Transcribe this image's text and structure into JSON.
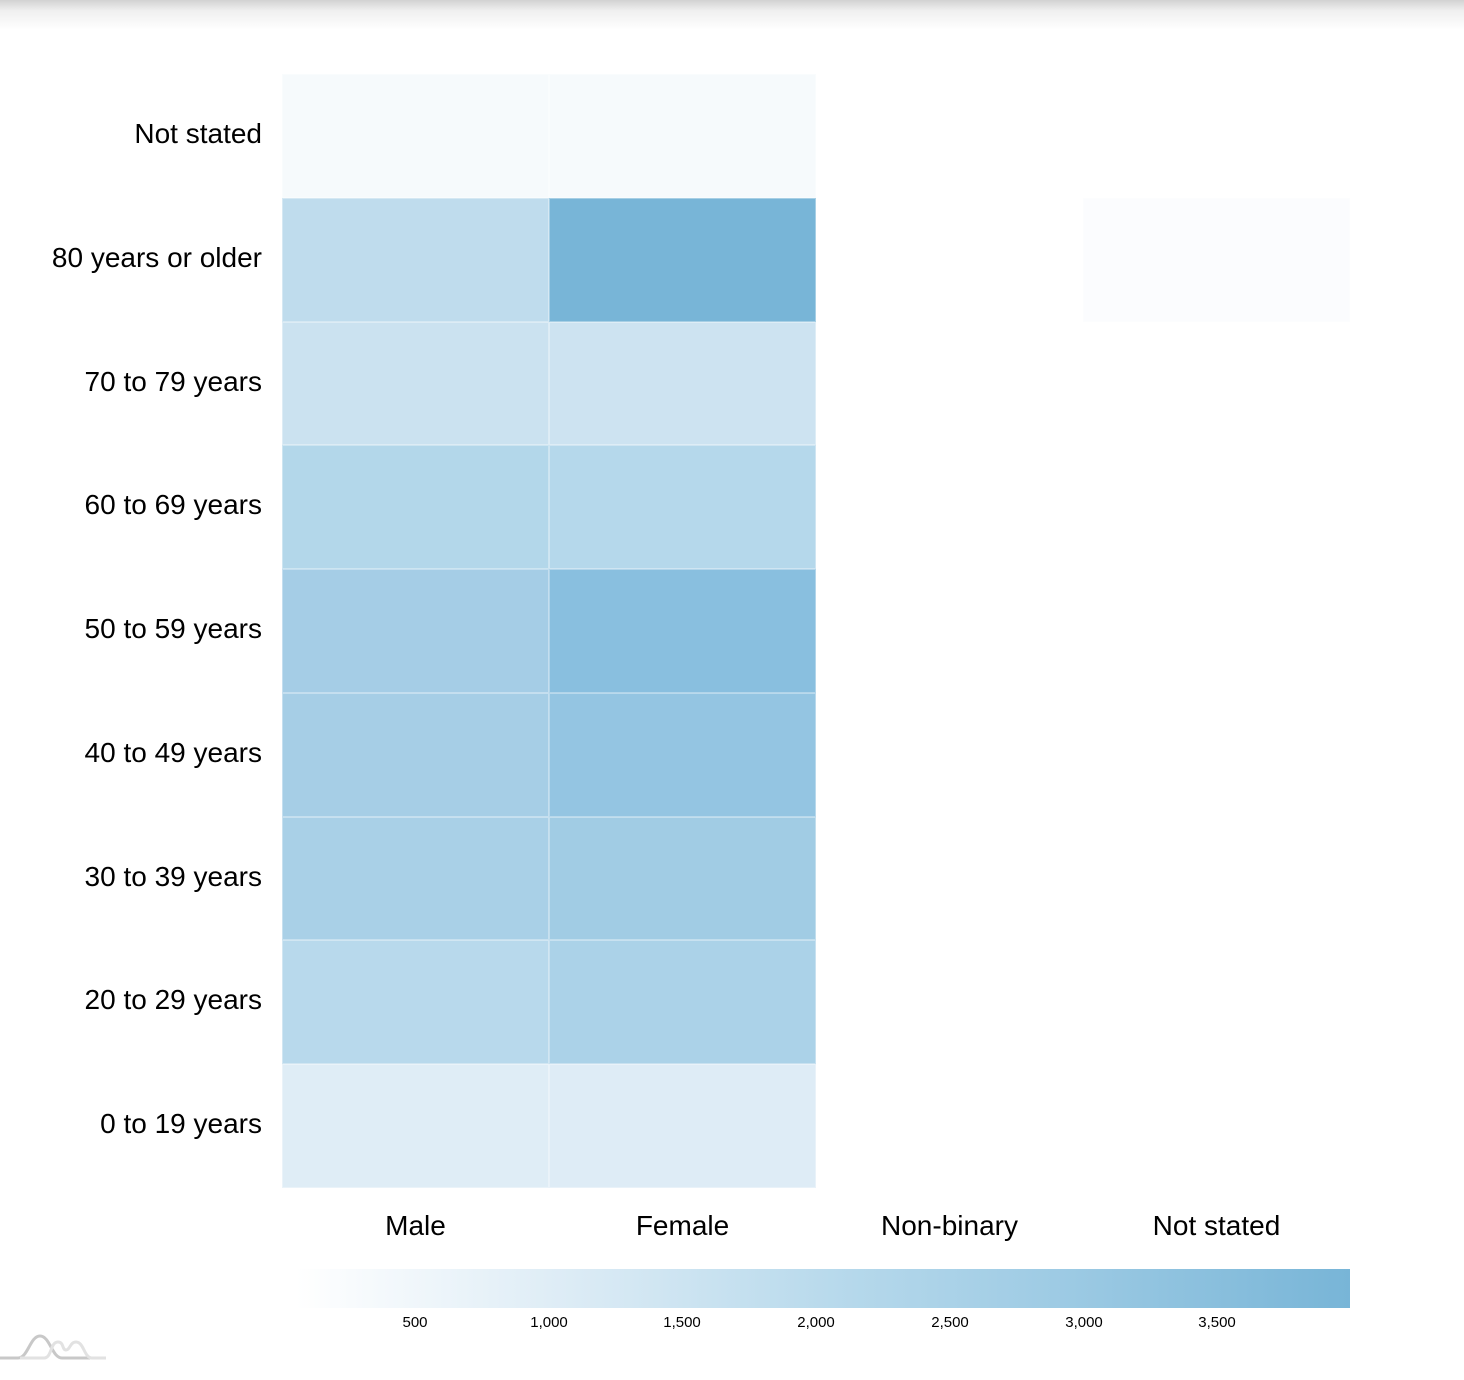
{
  "chart_data": {
    "type": "heatmap",
    "title": "",
    "xlabel": "",
    "ylabel": "",
    "x_categories": [
      "Male",
      "Female",
      "Non-binary",
      "Not stated"
    ],
    "y_categories": [
      "Not stated",
      "80 years or older",
      "70 to 79 years",
      "60 to 69 years",
      "50 to 59 years",
      "40 to 49 years",
      "30 to 39 years",
      "20 to 29 years",
      "0 to 19 years"
    ],
    "cells": [
      {
        "y": "Not stated",
        "x": "Male",
        "value": 100,
        "color": "#f6fafc"
      },
      {
        "y": "Not stated",
        "x": "Female",
        "value": 100,
        "color": "#f6fafc"
      },
      {
        "y": "80 years or older",
        "x": "Male",
        "value": 1900,
        "color": "#bfdced"
      },
      {
        "y": "80 years or older",
        "x": "Female",
        "value": 4000,
        "color": "#78b5d7"
      },
      {
        "y": "80 years or older",
        "x": "Not stated",
        "value": 20,
        "color": "#fbfcfe"
      },
      {
        "y": "70 to 79 years",
        "x": "Male",
        "value": 1550,
        "color": "#cbe2f0"
      },
      {
        "y": "70 to 79 years",
        "x": "Female",
        "value": 1500,
        "color": "#cde3f1"
      },
      {
        "y": "60 to 69 years",
        "x": "Male",
        "value": 2250,
        "color": "#b3d7ea"
      },
      {
        "y": "60 to 69 years",
        "x": "Female",
        "value": 2200,
        "color": "#b5d8eb"
      },
      {
        "y": "50 to 59 years",
        "x": "Male",
        "value": 2700,
        "color": "#a5cde6"
      },
      {
        "y": "50 to 59 years",
        "x": "Female",
        "value": 3500,
        "color": "#89bfdf"
      },
      {
        "y": "40 to 49 years",
        "x": "Male",
        "value": 2700,
        "color": "#a6cee6"
      },
      {
        "y": "40 to 49 years",
        "x": "Female",
        "value": 3200,
        "color": "#94c5e2"
      },
      {
        "y": "30 to 39 years",
        "x": "Male",
        "value": 2600,
        "color": "#a9d0e7"
      },
      {
        "y": "30 to 39 years",
        "x": "Female",
        "value": 2800,
        "color": "#a1cce4"
      },
      {
        "y": "20 to 29 years",
        "x": "Male",
        "value": 2100,
        "color": "#b8d9ec"
      },
      {
        "y": "20 to 29 years",
        "x": "Female",
        "value": 2500,
        "color": "#abd2e8"
      },
      {
        "y": "0 to 19 years",
        "x": "Male",
        "value": 1000,
        "color": "#dfedf6"
      },
      {
        "y": "0 to 19 years",
        "x": "Female",
        "value": 1000,
        "color": "#deecf6"
      }
    ],
    "color_scale": {
      "min_color": "#ffffff",
      "max_color": "#78b5d7",
      "range": [
        55,
        4000
      ],
      "ticks": [
        "500",
        "1,000",
        "1,500",
        "2,000",
        "2,500",
        "3,000",
        "3,500"
      ]
    },
    "legend_position": "bottom",
    "grid": false
  },
  "branding": {
    "logo": "amcharts-logo-icon"
  }
}
